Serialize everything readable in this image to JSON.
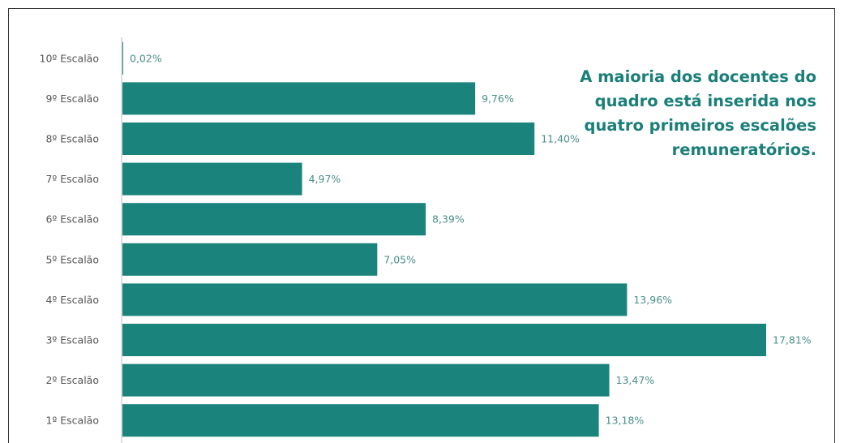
{
  "chart_data": {
    "type": "bar",
    "orientation": "horizontal",
    "categories": [
      "10º Escalão",
      "9º Escalão",
      "8º Escalão",
      "7º Escalão",
      "6º Escalão",
      "5º Escalão",
      "4º Escalão",
      "3º Escalão",
      "2º Escalão",
      "1º Escalão"
    ],
    "values": [
      0.02,
      9.76,
      11.4,
      4.97,
      8.39,
      7.05,
      13.96,
      17.81,
      13.47,
      13.18
    ],
    "value_labels": [
      "0,02%",
      "9,76%",
      "11,40%",
      "4,97%",
      "8,39%",
      "7,05%",
      "13,96%",
      "17,81%",
      "13,47%",
      "13,18%"
    ],
    "unit": "%",
    "xlim": [
      0,
      17.81
    ],
    "grid": false,
    "legend": "none"
  },
  "annotation": {
    "lines": [
      "A maioria dos docentes do",
      "quadro está inserida nos",
      "quatro primeiros escalões",
      "remuneratórios."
    ]
  },
  "colors": {
    "bar": "#1a837b",
    "label": "#4a8f89",
    "category_text": "#555555",
    "annotation": "#1a7f78",
    "axis": "#bbbbbb"
  }
}
